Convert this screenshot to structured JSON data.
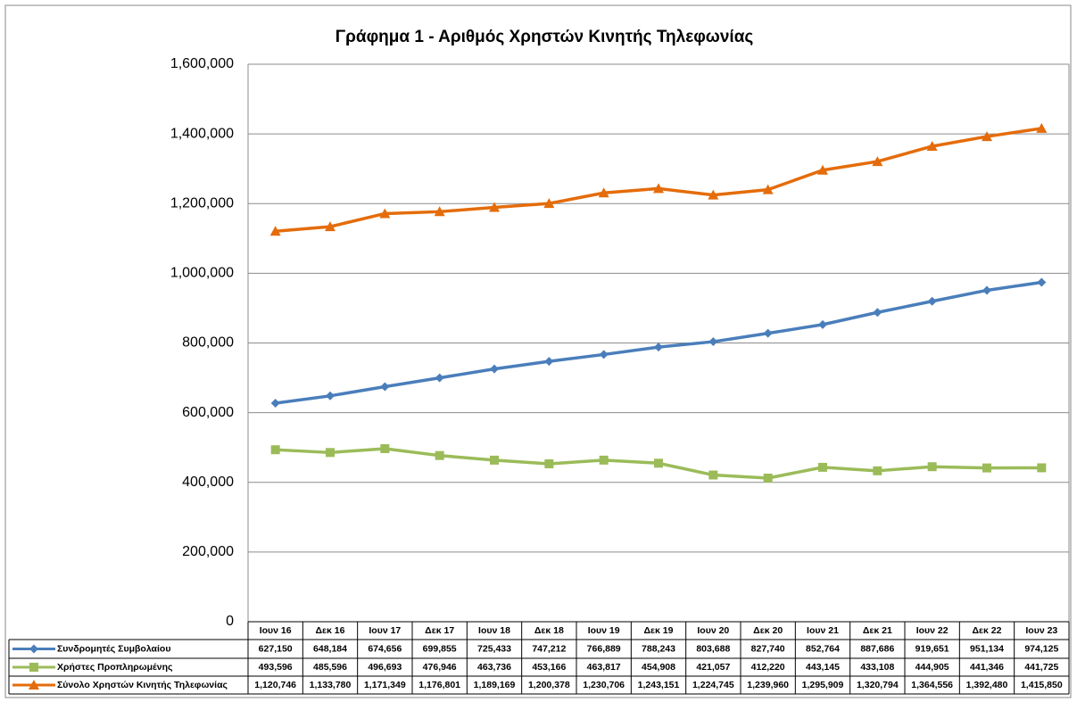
{
  "chart_data": {
    "type": "line",
    "title": "Γράφημα 1 - Αριθμός Χρηστών Κινητής Τηλεφωνίας",
    "categories": [
      "Ιουν 16",
      "Δεκ 16",
      "Ιουν 17",
      "Δεκ 17",
      "Ιουν 18",
      "Δεκ 18",
      "Ιουν 19",
      "Δεκ 19",
      "Ιουν 20",
      "Δεκ 20",
      "Ιουν 21",
      "Δεκ 21",
      "Ιουν 22",
      "Δεκ 22",
      "Ιουν 23"
    ],
    "series": [
      {
        "name": "Συνδρομητές Συμβολαίου",
        "color": "#4a7ebb",
        "marker": "diamond",
        "values": [
          627150,
          648184,
          674656,
          699855,
          725433,
          747212,
          766889,
          788243,
          803688,
          827740,
          852764,
          887686,
          919651,
          951134,
          974125
        ],
        "value_labels": [
          "627,150",
          "648,184",
          "674,656",
          "699,855",
          "725,433",
          "747,212",
          "766,889",
          "788,243",
          "803,688",
          "827,740",
          "852,764",
          "887,686",
          "919,651",
          "951,134",
          "974,125"
        ]
      },
      {
        "name": "Χρήστες Προπληρωμένης",
        "color": "#9bbb59",
        "marker": "square",
        "values": [
          493596,
          485596,
          496693,
          476946,
          463736,
          453166,
          463817,
          454908,
          421057,
          412220,
          443145,
          433108,
          444905,
          441346,
          441725
        ],
        "value_labels": [
          "493,596",
          "485,596",
          "496,693",
          "476,946",
          "463,736",
          "453,166",
          "463,817",
          "454,908",
          "421,057",
          "412,220",
          "443,145",
          "433,108",
          "444,905",
          "441,346",
          "441,725"
        ]
      },
      {
        "name": "Σύνολο Χρηστών Κινητής Τηλεφωνίας",
        "color": "#e46c0a",
        "marker": "triangle",
        "values": [
          1120746,
          1133780,
          1171349,
          1176801,
          1189169,
          1200378,
          1230706,
          1243151,
          1224745,
          1239960,
          1295909,
          1320794,
          1364556,
          1392480,
          1415850
        ],
        "value_labels": [
          "1,120,746",
          "1,133,780",
          "1,171,349",
          "1,176,801",
          "1,189,169",
          "1,200,378",
          "1,230,706",
          "1,243,151",
          "1,224,745",
          "1,239,960",
          "1,295,909",
          "1,320,794",
          "1,364,556",
          "1,392,480",
          "1,415,850"
        ]
      }
    ],
    "ylim": [
      0,
      1600000
    ],
    "yticks": [
      0,
      {
        "value": 200000,
        "label": "200,000"
      },
      {
        "value": 400000,
        "label": "400,000"
      },
      {
        "value": 600000,
        "label": "600,000"
      },
      {
        "value": 800000,
        "label": "800,000"
      },
      {
        "value": 1000000,
        "label": "1,000,000"
      },
      {
        "value": 1200000,
        "label": "1,200,000"
      },
      {
        "value": 1400000,
        "label": "1,400,000"
      },
      {
        "value": 1600000,
        "label": "1,600,000"
      }
    ],
    "grid": true
  }
}
